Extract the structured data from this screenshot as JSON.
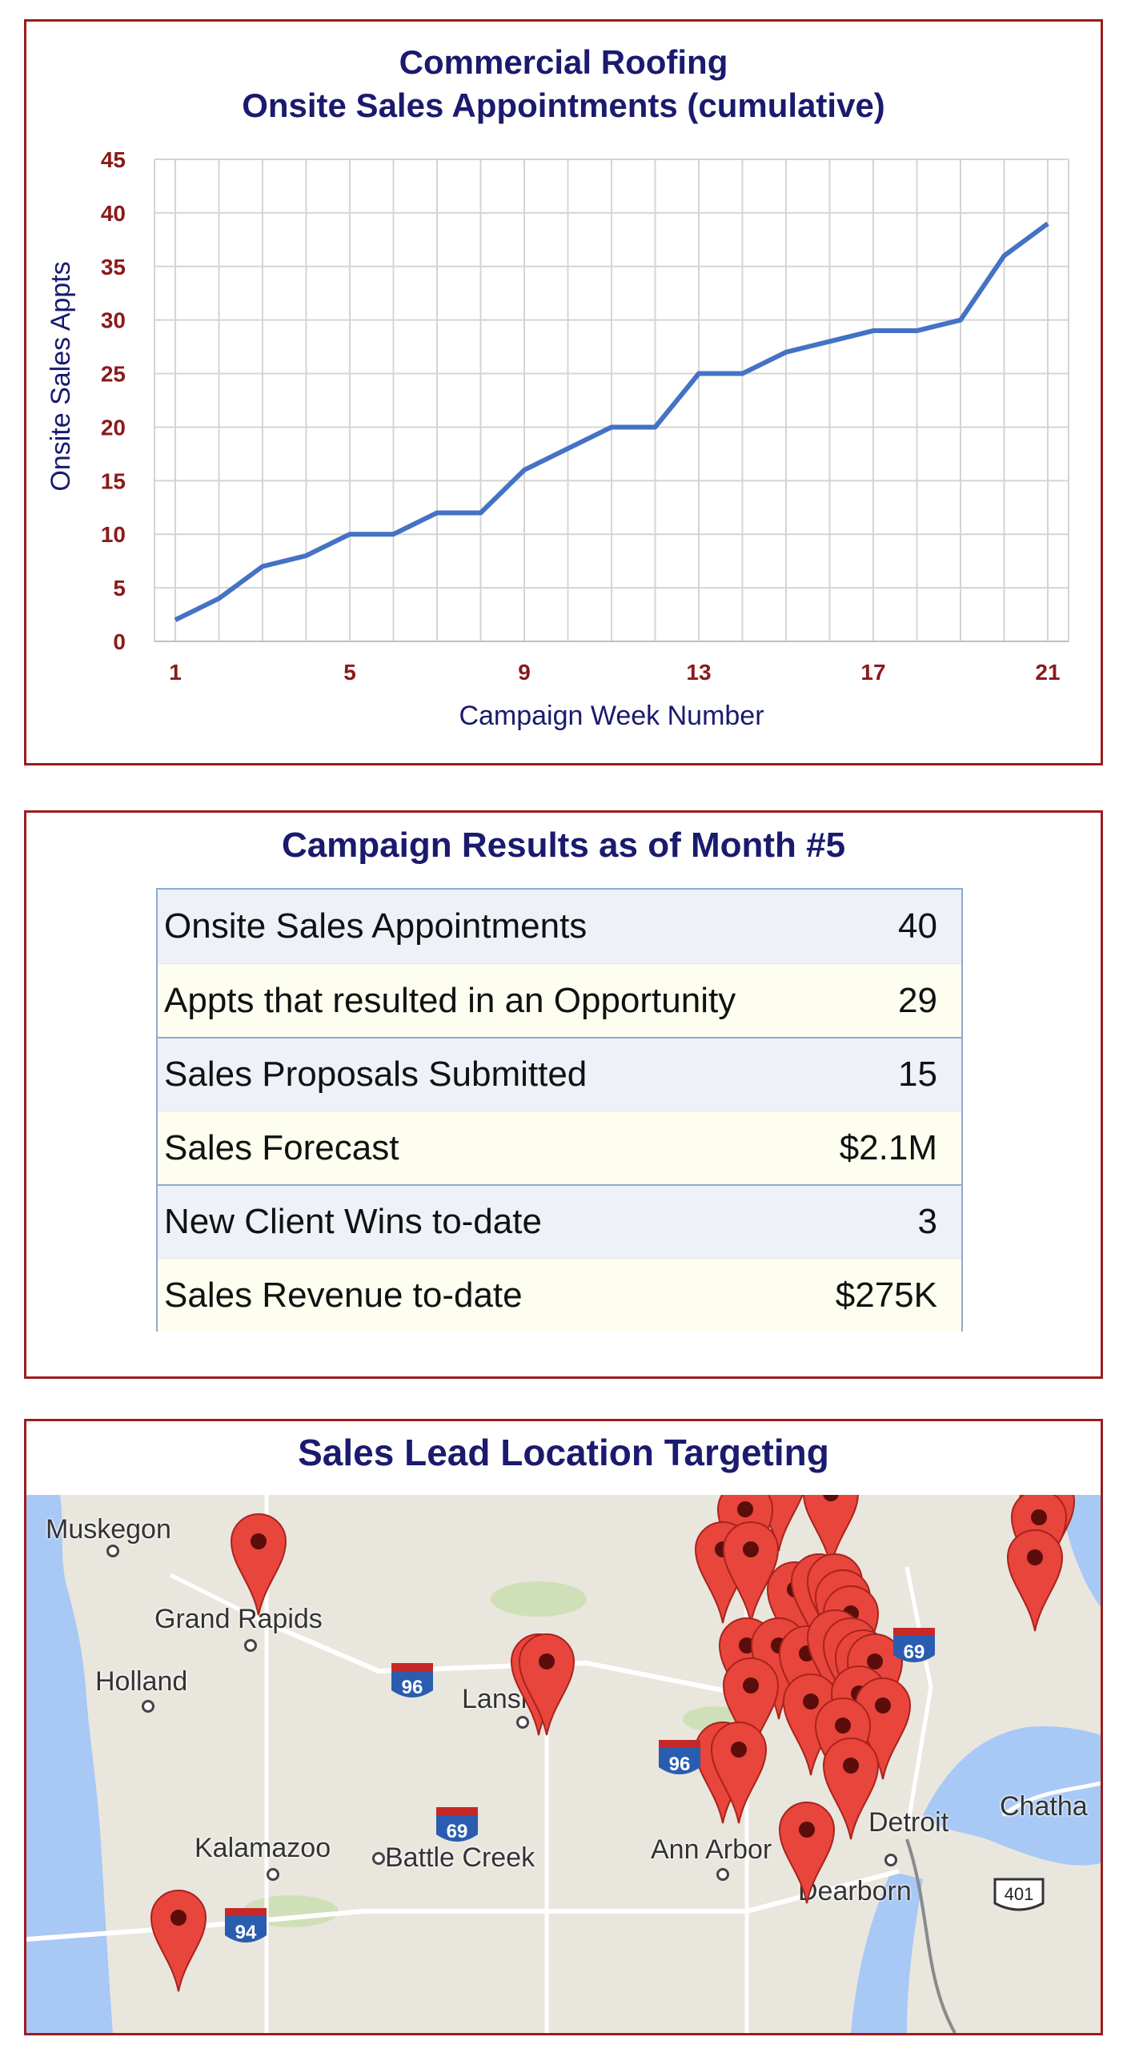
{
  "chart": {
    "title_line1": "Commercial Roofing",
    "title_line2": "Onsite Sales Appointments (cumulative)"
  },
  "chart_data": {
    "type": "line",
    "title": "Commercial Roofing Onsite Sales Appointments (cumulative)",
    "xlabel": "Campaign Week Number",
    "ylabel": "Onsite Sales Appts",
    "x": [
      1,
      2,
      3,
      4,
      5,
      6,
      7,
      8,
      9,
      10,
      11,
      12,
      13,
      14,
      15,
      16,
      17,
      18,
      19,
      20,
      21
    ],
    "x_ticks": [
      "1",
      "5",
      "9",
      "13",
      "17",
      "21"
    ],
    "y_ticks": [
      "0",
      "5",
      "10",
      "15",
      "20",
      "25",
      "30",
      "35",
      "40",
      "45"
    ],
    "ylim": [
      0,
      45
    ],
    "grid": true,
    "series": [
      {
        "values": [
          2,
          4,
          7,
          8,
          10,
          10,
          12,
          12,
          16,
          18,
          20,
          20,
          25,
          25,
          27,
          28,
          29,
          29,
          30,
          36,
          39
        ],
        "color": "#4472c4"
      }
    ],
    "tick_color": "#8b1a1a",
    "label_color": "#1a1a6e"
  },
  "results": {
    "title": "Campaign Results as of Month #5",
    "rows": [
      {
        "label": "Onsite Sales Appointments",
        "value": "40"
      },
      {
        "label": "Appts that resulted in an Opportunity",
        "value": "29"
      },
      {
        "label": "Sales Proposals Submitted",
        "value": "15"
      },
      {
        "label": "Sales Forecast",
        "value": "$2.1M"
      },
      {
        "label": "New Client Wins to-date",
        "value": "3"
      },
      {
        "label": "Sales Revenue to-date",
        "value": "$275K"
      }
    ]
  },
  "map": {
    "title": "Sales Lead Location Targeting",
    "cities": {
      "muskegon": "Muskegon",
      "grand_rapids": "Grand Rapids",
      "holland": "Holland",
      "lansing": "Lansing",
      "kalamazoo": "Kalamazoo",
      "battle_creek": "Battle Creek",
      "ann_arbor": "Ann Arbor",
      "detroit": "Detroit",
      "dearborn": "Dearborn",
      "chatham": "Chatha"
    },
    "highways": {
      "i96a": "96",
      "i96b": "96",
      "i69a": "69",
      "i69b": "69",
      "i94": "94",
      "h401": "401"
    },
    "marker_color": "#e8453c",
    "marker_icon": "map-pin-icon"
  }
}
